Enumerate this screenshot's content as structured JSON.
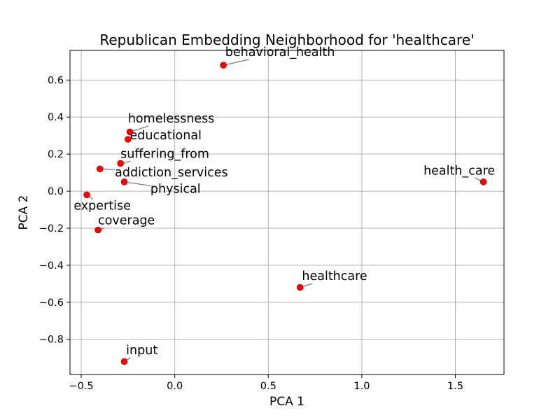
{
  "chart_data": {
    "type": "scatter",
    "title": "Republican Embedding Neighborhood for 'healthcare'",
    "xlabel": "PCA 1",
    "ylabel": "PCA 2",
    "xlim": [
      -0.56,
      1.76
    ],
    "ylim": [
      -0.99,
      0.76
    ],
    "xticks": [
      -0.5,
      0.0,
      0.5,
      1.0,
      1.5
    ],
    "xtick_labels": [
      "−0.5",
      "0.0",
      "0.5",
      "1.0",
      "1.5"
    ],
    "yticks": [
      -0.8,
      -0.6,
      -0.4,
      -0.2,
      0.0,
      0.2,
      0.4,
      0.6
    ],
    "ytick_labels": [
      "−0.8",
      "−0.6",
      "−0.4",
      "−0.2",
      "0.0",
      "0.2",
      "0.4",
      "0.6"
    ],
    "grid": true,
    "marker_color": "#ff0000",
    "marker_edge_color": "#990000",
    "leader_line_color": "#808080",
    "points": [
      {
        "label": "behavioral_health",
        "x": 0.26,
        "y": 0.68,
        "label_x": 0.27,
        "label_y": 0.73
      },
      {
        "label": "homelessness",
        "x": -0.24,
        "y": 0.32,
        "label_x": -0.25,
        "label_y": 0.37
      },
      {
        "label": "educational",
        "x": -0.25,
        "y": 0.28,
        "label_x": -0.24,
        "label_y": 0.28
      },
      {
        "label": "suffering_from",
        "x": -0.29,
        "y": 0.15,
        "label_x": -0.29,
        "label_y": 0.18
      },
      {
        "label": "addiction_services",
        "x": -0.4,
        "y": 0.12,
        "label_x": -0.32,
        "label_y": 0.08
      },
      {
        "label": "physical",
        "x": -0.27,
        "y": 0.05,
        "label_x": -0.13,
        "label_y": -0.01
      },
      {
        "label": "health_care",
        "x": 1.65,
        "y": 0.05,
        "label_x": 1.33,
        "label_y": 0.09
      },
      {
        "label": "expertise",
        "x": -0.47,
        "y": -0.02,
        "label_x": -0.54,
        "label_y": -0.1
      },
      {
        "label": "coverage",
        "x": -0.41,
        "y": -0.21,
        "label_x": -0.41,
        "label_y": -0.18
      },
      {
        "label": "healthcare",
        "x": 0.67,
        "y": -0.52,
        "label_x": 0.68,
        "label_y": -0.48
      },
      {
        "label": "input",
        "x": -0.27,
        "y": -0.92,
        "label_x": -0.26,
        "label_y": -0.88
      }
    ]
  }
}
